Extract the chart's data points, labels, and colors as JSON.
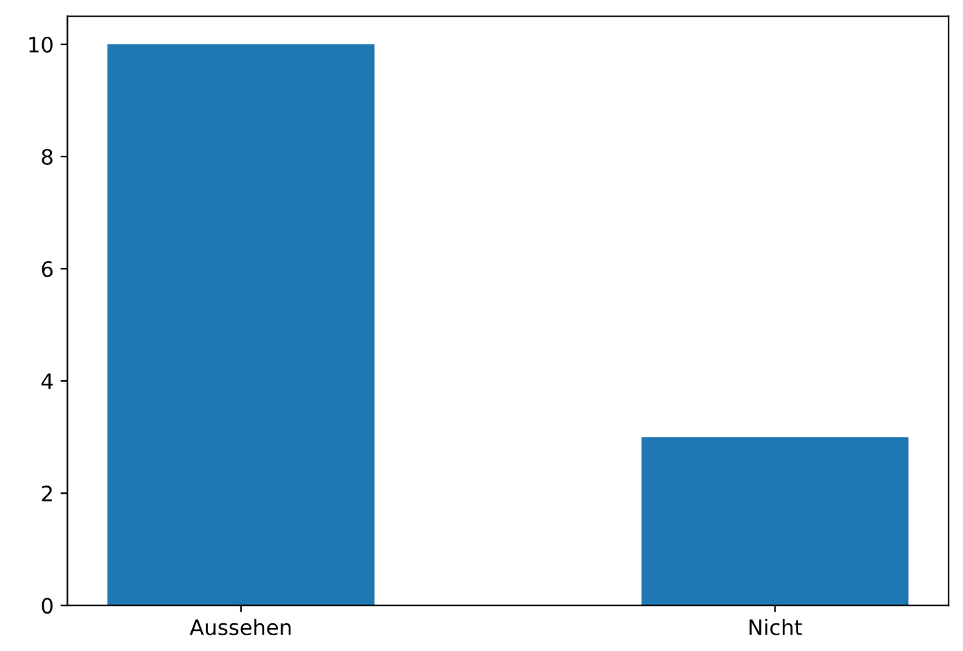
{
  "chart_data": {
    "type": "bar",
    "categories": [
      "Aussehen",
      "Nicht"
    ],
    "values": [
      10,
      3
    ],
    "color": "#1f77b4",
    "ylim": [
      0,
      10.5
    ],
    "yticks": [
      0,
      2,
      4,
      6,
      8,
      10
    ],
    "grid": false
  }
}
